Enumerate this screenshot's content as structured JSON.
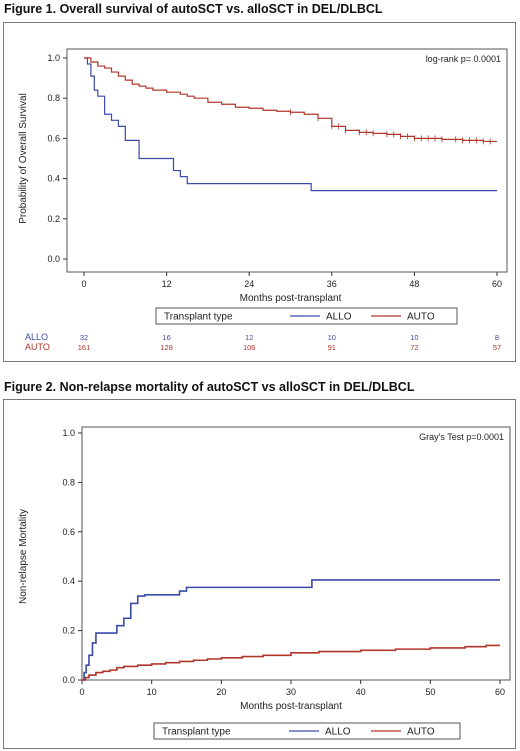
{
  "figure1": {
    "title": "Figure 1. Overall survival of autoSCT vs. alloSCT in DEL/DLBCL"
  },
  "figure2": {
    "title": "Figure 2. Non-relapse mortality of autoSCT vs alloSCT in DEL/DLBCL"
  },
  "colors": {
    "allo": "#3b4aa8",
    "auto": "#b0362a"
  },
  "chart_data": [
    {
      "type": "line",
      "step": true,
      "ylabel": "Probability of Overall Survival",
      "xlabel": "Months post-transplant",
      "annotation": "log-rank p= 0.0001",
      "xlim": [
        0,
        60
      ],
      "ylim": [
        0,
        1
      ],
      "xticks": [
        "0",
        "12",
        "24",
        "36",
        "48",
        "60"
      ],
      "yticks": [
        "0.0",
        "0.2",
        "0.4",
        "0.6",
        "0.8",
        "1.0"
      ],
      "legend_title": "Transplant type",
      "legend_position": "bottom",
      "series": [
        {
          "name": "ALLO",
          "color": "#3b4aa8",
          "x": [
            0,
            0.5,
            1,
            1.5,
            2,
            3,
            4,
            5,
            6,
            8,
            12,
            13,
            14,
            15,
            32,
            33,
            60
          ],
          "y": [
            1,
            0.97,
            0.91,
            0.84,
            0.81,
            0.72,
            0.69,
            0.66,
            0.59,
            0.5,
            0.5,
            0.44,
            0.41,
            0.375,
            0.375,
            0.34,
            0.34
          ],
          "censor_x": []
        },
        {
          "name": "AUTO",
          "color": "#b0362a",
          "x": [
            0,
            1,
            2,
            3,
            4,
            5,
            6,
            7,
            8,
            9,
            10,
            12,
            14,
            15,
            16,
            18,
            20,
            22,
            24,
            26,
            28,
            30,
            32,
            34,
            36,
            38,
            40,
            42,
            44,
            46,
            48,
            50,
            52,
            55,
            58,
            60
          ],
          "y": [
            1,
            0.98,
            0.96,
            0.95,
            0.93,
            0.91,
            0.89,
            0.87,
            0.86,
            0.85,
            0.84,
            0.83,
            0.82,
            0.81,
            0.8,
            0.78,
            0.77,
            0.755,
            0.75,
            0.74,
            0.735,
            0.73,
            0.72,
            0.7,
            0.66,
            0.64,
            0.63,
            0.625,
            0.62,
            0.61,
            0.6,
            0.6,
            0.595,
            0.59,
            0.585,
            0.585
          ],
          "censor_x": [
            30,
            34,
            36,
            37,
            38,
            40,
            41,
            42,
            44,
            45,
            46,
            47,
            48,
            49,
            50,
            51,
            52,
            54,
            55,
            56,
            57,
            58,
            59
          ]
        }
      ],
      "risk_table": {
        "rows": [
          {
            "name": "ALLO",
            "values": [
              "32",
              "16",
              "12",
              "10",
              "10",
              "8"
            ]
          },
          {
            "name": "AUTO",
            "values": [
              "161",
              "128",
              "106",
              "91",
              "72",
              "57"
            ]
          }
        ]
      }
    },
    {
      "type": "line",
      "step": true,
      "ylabel": "Non-relapse Mortality",
      "xlabel": "Months post-transplant",
      "annotation": "Gray's Test p=0.0001",
      "xlim": [
        0,
        60
      ],
      "ylim": [
        0,
        1
      ],
      "xticks": [
        "0",
        "10",
        "20",
        "30",
        "40",
        "50",
        "60"
      ],
      "yticks": [
        "0.0",
        "0.2",
        "0.4",
        "0.6",
        "0.8",
        "1.0"
      ],
      "legend_title": "Transplant type",
      "legend_position": "bottom",
      "series": [
        {
          "name": "ALLO",
          "color": "#3b4aa8",
          "x": [
            0,
            0.3,
            0.6,
            1,
            1.5,
            2,
            2.5,
            5,
            6,
            7,
            8,
            9,
            14,
            15,
            32,
            33,
            60
          ],
          "y": [
            0,
            0.03,
            0.06,
            0.1,
            0.15,
            0.19,
            0.19,
            0.22,
            0.25,
            0.31,
            0.34,
            0.345,
            0.36,
            0.375,
            0.375,
            0.405,
            0.405
          ]
        },
        {
          "name": "AUTO",
          "color": "#b0362a",
          "x": [
            0,
            0.5,
            1,
            2,
            3,
            4,
            5,
            6,
            8,
            10,
            12,
            14,
            16,
            18,
            20,
            23,
            26,
            30,
            34,
            40,
            45,
            50,
            55,
            58,
            60
          ],
          "y": [
            0,
            0.01,
            0.02,
            0.03,
            0.035,
            0.04,
            0.05,
            0.055,
            0.06,
            0.065,
            0.07,
            0.075,
            0.08,
            0.085,
            0.09,
            0.095,
            0.1,
            0.11,
            0.115,
            0.12,
            0.125,
            0.13,
            0.135,
            0.14,
            0.14
          ]
        }
      ]
    }
  ]
}
